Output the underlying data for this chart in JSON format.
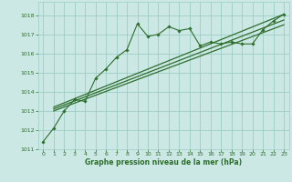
{
  "xlabel": "Graphe pression niveau de la mer (hPa)",
  "xlim": [
    -0.5,
    23.5
  ],
  "ylim": [
    1011.0,
    1018.7
  ],
  "yticks": [
    1011,
    1012,
    1013,
    1014,
    1015,
    1016,
    1017,
    1018
  ],
  "xticks": [
    0,
    1,
    2,
    3,
    4,
    5,
    6,
    7,
    8,
    9,
    10,
    11,
    12,
    13,
    14,
    15,
    16,
    17,
    18,
    19,
    20,
    21,
    22,
    23
  ],
  "background_color": "#cce8e4",
  "grid_color": "#9ecdc7",
  "line_color": "#2d6e2d",
  "main_data": [
    1011.4,
    1012.1,
    1013.0,
    1013.6,
    1013.5,
    1014.7,
    1015.2,
    1015.8,
    1016.2,
    1017.55,
    1016.9,
    1017.0,
    1017.4,
    1017.2,
    1017.3,
    1016.4,
    1016.6,
    1016.5,
    1016.6,
    1016.5,
    1016.5,
    1017.25,
    1017.7,
    1018.05
  ],
  "trend1_x": [
    1,
    23
  ],
  "trend1_y": [
    1013.0,
    1017.5
  ],
  "trend2_x": [
    1,
    23
  ],
  "trend2_y": [
    1013.1,
    1017.75
  ],
  "trend3_x": [
    1,
    23
  ],
  "trend3_y": [
    1013.2,
    1018.05
  ],
  "figsize": [
    3.2,
    2.0
  ],
  "dpi": 100
}
